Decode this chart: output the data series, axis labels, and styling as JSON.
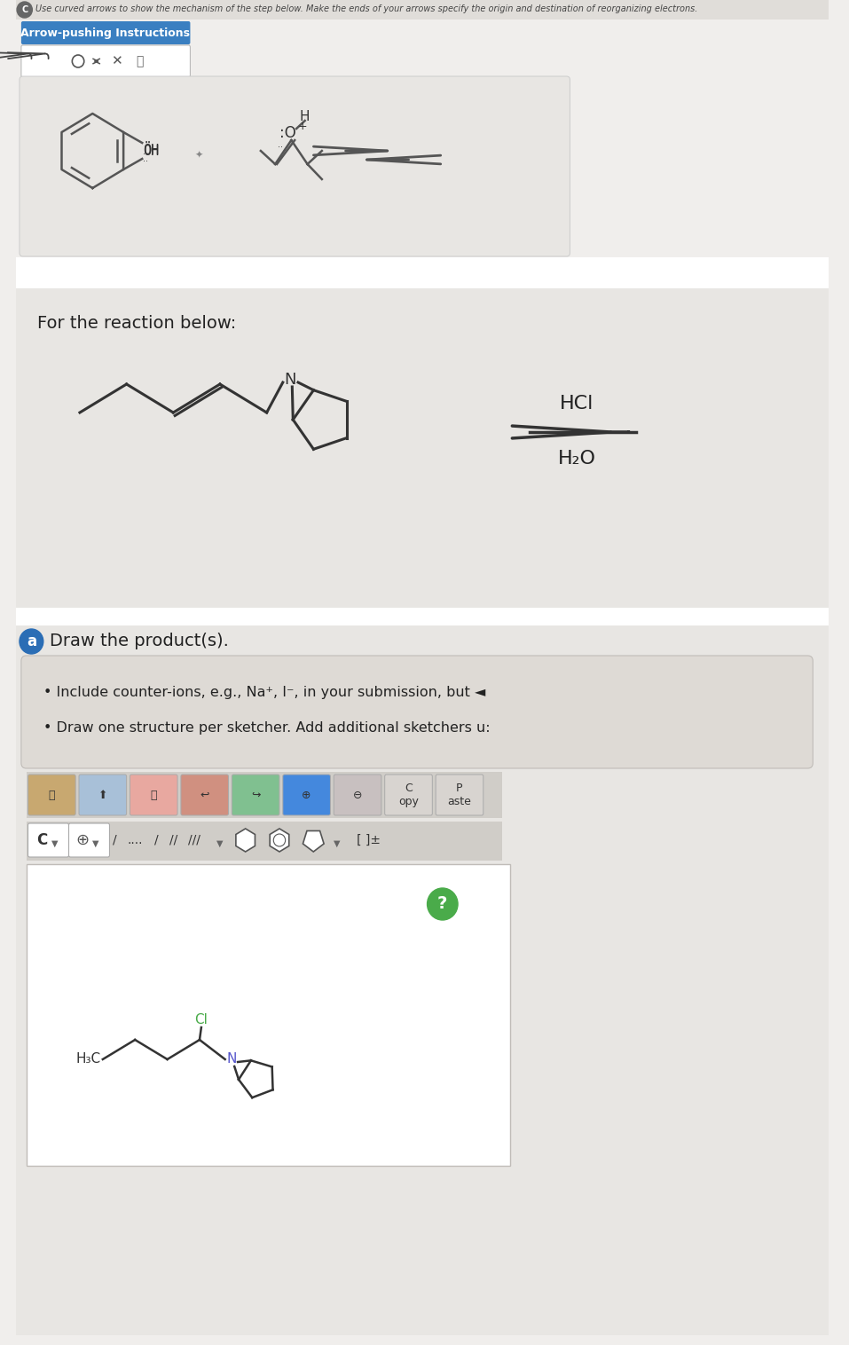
{
  "bg_main": "#f0eeec",
  "bg_panel": "#e8e6e3",
  "bg_white": "#ffffff",
  "bg_instr": "#e0ddd9",
  "bg_toolbar": "#d5d2ce",
  "header_text": "Use curved arrows to show the mechanism of the step below. Make the ends of your arrows specify the origin and destination of reorganizing electrons.",
  "btn_blue": "#3a7fc1",
  "btn_text": "Arrow-pushing Instructions",
  "for_reaction_text": "For the reaction below:",
  "hcl_text": "HCl",
  "h2o_text": "H₂O",
  "part_a_circle": "#2a6db5",
  "part_a_text": "Draw the product(s).",
  "bullet1": "Include counter-ions, e.g., Na⁺, I⁻, in your submission, but ◄",
  "bullet2": "Draw one structure per sketcher. Add additional sketchers u:",
  "qmark_color": "#4aab4a",
  "sketch_border": "#c0bcb8",
  "cl_color": "#4aab4a",
  "n_color": "#5555cc",
  "mol_color": "#333333"
}
